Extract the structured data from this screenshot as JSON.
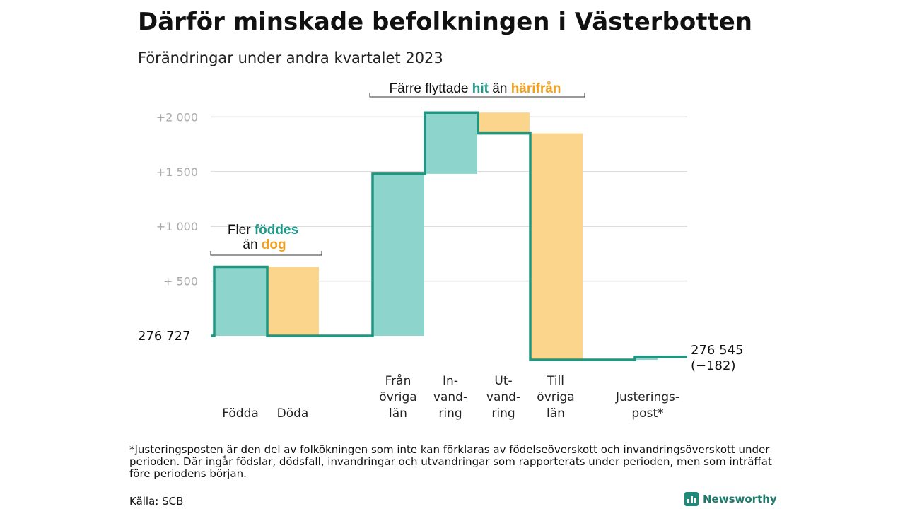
{
  "title": "Därför minskade befolkningen i Västerbotten",
  "subtitle": "Förändringar under andra kvartalet 2023",
  "annotations": {
    "births_deaths": {
      "line1_a": "Fler ",
      "line1_b": "föddes",
      "line2_a": "än ",
      "line2_b": "dog"
    },
    "migration": {
      "part_a": "Färre flyttade ",
      "part_b": "hit",
      "part_c": " än ",
      "part_d": "härifrån"
    }
  },
  "footnote": "*Justeringsposten är den del av folkökningen som inte kan förklaras av födelseöverskott och invandringsöverskott under perioden. Där ingår födslar, dödsfall, invandringar och utvandringar som rapporterats under perioden, men som inträffat före periodens början.",
  "source": "Källa: SCB",
  "logo": {
    "text": "Newsworthy",
    "icon": "newsworthy-logo-icon"
  },
  "colors": {
    "increase": "#8dd5cc",
    "decrease": "#fad58b",
    "line": "#1e9680",
    "grid": "#dddddd",
    "highlight_green": "#1e9a8a",
    "highlight_orange": "#f0a020"
  },
  "chart_data": {
    "type": "waterfall",
    "start_value": 276727,
    "start_label": "276 727",
    "end_value": 276545,
    "end_label": "276 545",
    "end_change_label": "(−182)",
    "y_ticks": [
      {
        "value": 500,
        "label": "+ 500"
      },
      {
        "value": 1000,
        "label": "+1 000"
      },
      {
        "value": 1500,
        "label": "+1 500"
      },
      {
        "value": 2000,
        "label": "+2 000"
      }
    ],
    "ylim": [
      -300,
      2100
    ],
    "steps": [
      {
        "label": [
          "Födda"
        ],
        "change": 630
      },
      {
        "label": [
          "Döda"
        ],
        "change": -630
      },
      {
        "label": [
          "Från",
          "övriga",
          "län"
        ],
        "change": 1480
      },
      {
        "label": [
          "In-",
          "vand-",
          "ring"
        ],
        "change": 560
      },
      {
        "label": [
          "Ut-",
          "vand-",
          "ring"
        ],
        "change": -190
      },
      {
        "label": [
          "Till",
          "övriga",
          "län"
        ],
        "change": -2070
      },
      {
        "label": [
          "Justerings-",
          "post*"
        ],
        "change": 28
      }
    ]
  }
}
